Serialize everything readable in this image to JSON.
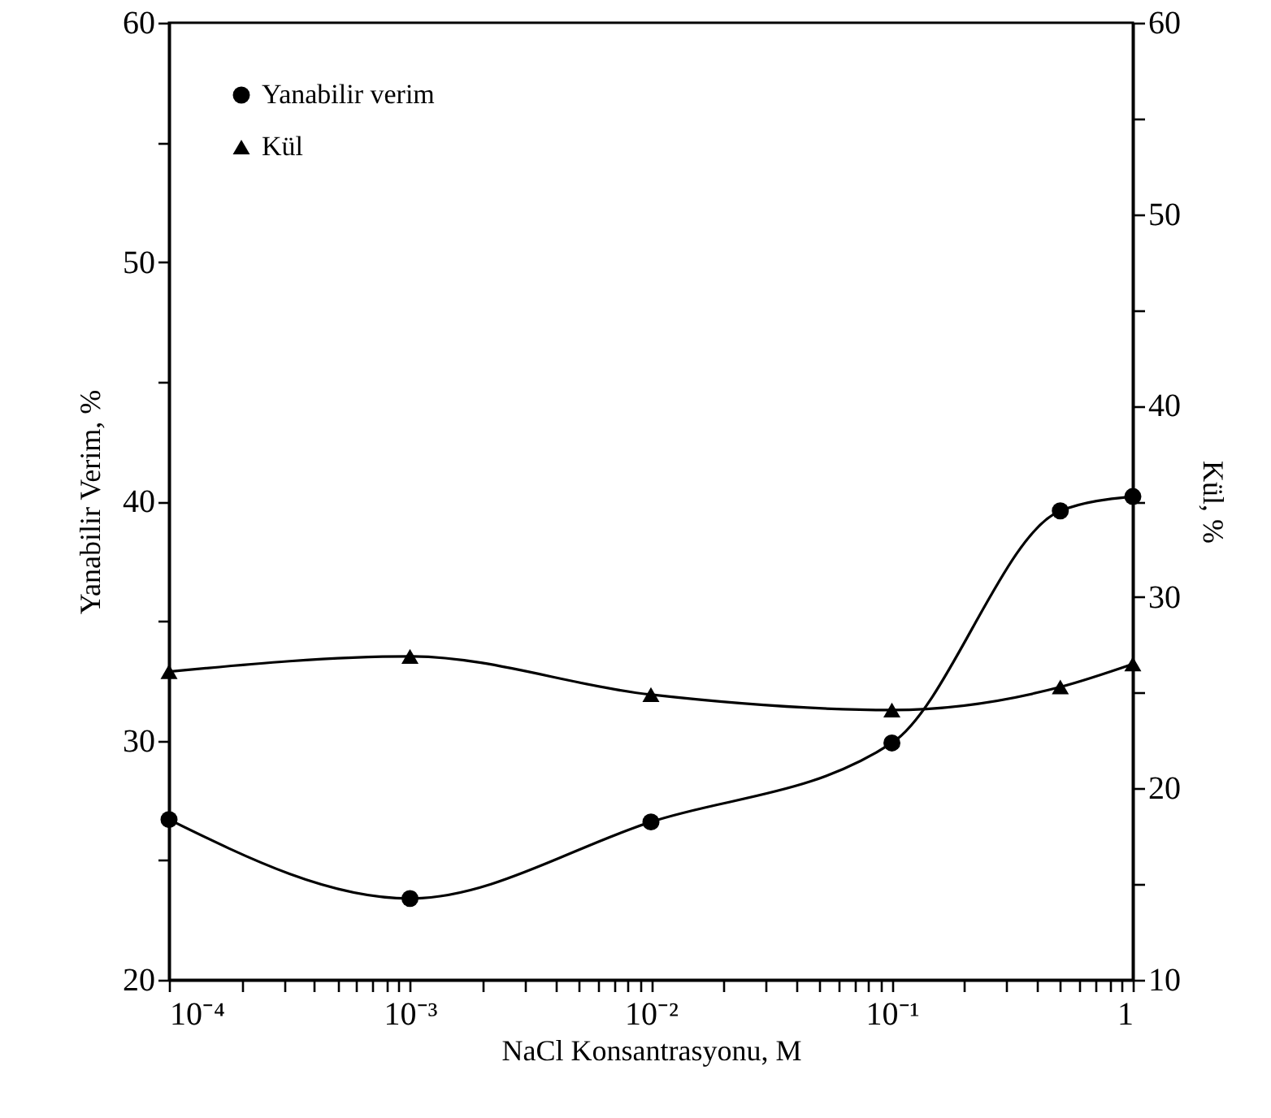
{
  "chart_data": {
    "type": "line",
    "xlabel": "NaCl Konsantrasyonu, M",
    "ylabel": "Yanabilir Verim, %",
    "y2label": "Kül, %",
    "x": [
      0.0001,
      0.001,
      0.01,
      0.1,
      0.5,
      1
    ],
    "log": "x",
    "grid": false,
    "legend": "top left",
    "line_style": "solid",
    "xlim": [
      0.0001,
      1
    ],
    "xticks": [
      {
        "value": 0.0001,
        "label": "10⁻⁴"
      },
      {
        "value": 0.0002,
        "label": null
      },
      {
        "value": 0.0003,
        "label": null
      },
      {
        "value": 0.0004,
        "label": null
      },
      {
        "value": 0.0005,
        "label": null
      },
      {
        "value": 0.0006,
        "label": null
      },
      {
        "value": 0.0007,
        "label": null
      },
      {
        "value": 0.0008,
        "label": null
      },
      {
        "value": 0.0009,
        "label": null
      },
      {
        "value": 0.001,
        "label": "10⁻³"
      },
      {
        "value": 0.002,
        "label": null
      },
      {
        "value": 0.003,
        "label": null
      },
      {
        "value": 0.004,
        "label": null
      },
      {
        "value": 0.005,
        "label": null
      },
      {
        "value": 0.006,
        "label": null
      },
      {
        "value": 0.007,
        "label": null
      },
      {
        "value": 0.008,
        "label": null
      },
      {
        "value": 0.009,
        "label": null
      },
      {
        "value": 0.01,
        "label": "10⁻²"
      },
      {
        "value": 0.02,
        "label": null
      },
      {
        "value": 0.03,
        "label": null
      },
      {
        "value": 0.04,
        "label": null
      },
      {
        "value": 0.05,
        "label": null
      },
      {
        "value": 0.06,
        "label": null
      },
      {
        "value": 0.07,
        "label": null
      },
      {
        "value": 0.08,
        "label": null
      },
      {
        "value": 0.09,
        "label": null
      },
      {
        "value": 0.1,
        "label": "10⁻¹"
      },
      {
        "value": 0.2,
        "label": null
      },
      {
        "value": 0.3,
        "label": null
      },
      {
        "value": 0.4,
        "label": null
      },
      {
        "value": 0.5,
        "label": null
      },
      {
        "value": 0.6,
        "label": null
      },
      {
        "value": 0.7,
        "label": null
      },
      {
        "value": 0.8,
        "label": null
      },
      {
        "value": 0.9,
        "label": null
      },
      1
    ],
    "ylim": [
      20,
      60
    ],
    "yticks": [
      20,
      {
        "value": 25,
        "label": null
      },
      30,
      {
        "value": 35,
        "label": null
      },
      40,
      {
        "value": 45,
        "label": null
      },
      50,
      {
        "value": 55,
        "label": null
      },
      60
    ],
    "y2lim": [
      10,
      60
    ],
    "y2ticks": [
      10,
      {
        "value": 15,
        "label": null
      },
      20,
      {
        "value": 25,
        "label": null
      },
      30,
      {
        "value": 35,
        "label": null
      },
      40,
      {
        "value": 45,
        "label": null
      },
      50,
      {
        "value": 55,
        "label": null
      },
      60
    ],
    "series": [
      {
        "name": "Yanabilir verim",
        "color": "#000000",
        "marker": "circle",
        "values": [
          26.7,
          23.4,
          26.6,
          29.9,
          39.6,
          40.2
        ]
      },
      {
        "name": "Kül",
        "color": "#000000",
        "marker": "triangle",
        "axis": "y2",
        "values": [
          26.1,
          26.9,
          24.9,
          24.1,
          25.3,
          26.5
        ]
      }
    ]
  }
}
